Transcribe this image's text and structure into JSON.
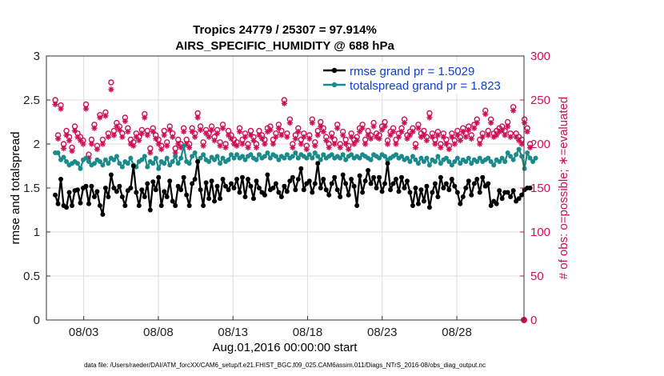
{
  "chart_data": {
    "type": "line",
    "title_line1": "Tropics 24779 / 25307 = 97.914%",
    "title_line2": "AIRS_SPECIFIC_HUMIDITY @ 688 hPa",
    "xlabel": "Aug.01,2016 00:00:00 start",
    "ylabel_left": "rmse and totalspread",
    "ylabel_right": "# of obs: o=possible; ∗=evaluated",
    "ylim_left": [
      0,
      3
    ],
    "ylim_right": [
      0,
      300
    ],
    "yticks_left": [
      "0",
      "0.5",
      "1",
      "1.5",
      "2",
      "2.5",
      "3"
    ],
    "yticks_right": [
      "0",
      "50",
      "100",
      "150",
      "200",
      "250",
      "300"
    ],
    "xlim": [
      0.5,
      32.5
    ],
    "xticks": [
      {
        "day": 3,
        "label": "08/03"
      },
      {
        "day": 8,
        "label": "08/08"
      },
      {
        "day": 13,
        "label": "08/13"
      },
      {
        "day": 18,
        "label": "08/18"
      },
      {
        "day": 23,
        "label": "08/23"
      },
      {
        "day": 28,
        "label": "08/28"
      }
    ],
    "footer": "data file: /Users/raeder/DAI/ATM_forcXX/CAM6_setup/f.e21.FHIST_BGC.f09_025.CAM6assim.011/Diags_NTrS_2016-08/obs_diag_output.nc",
    "colors": {
      "rmse": "#000000",
      "spread": "#1a8a8a",
      "obs": "#cc1155",
      "legend_text": "#0b3fd6"
    },
    "series": [
      {
        "name": "rmse grand pr = 1.5029",
        "key": "rmse",
        "values": [
          1.42,
          1.32,
          1.6,
          1.3,
          1.28,
          1.45,
          1.3,
          1.47,
          1.48,
          1.33,
          1.5,
          1.52,
          1.32,
          1.52,
          1.4,
          1.46,
          1.3,
          1.2,
          1.5,
          1.4,
          1.65,
          1.5,
          1.46,
          1.52,
          1.4,
          1.3,
          1.47,
          1.5,
          1.75,
          1.45,
          1.3,
          1.48,
          1.4,
          1.55,
          1.25,
          1.57,
          1.48,
          1.62,
          1.3,
          1.46,
          1.4,
          1.58,
          1.35,
          1.3,
          1.52,
          1.48,
          1.62,
          1.42,
          1.3,
          1.55,
          1.6,
          1.8,
          1.48,
          1.3,
          1.56,
          1.38,
          1.58,
          1.35,
          1.52,
          1.38,
          1.6,
          1.52,
          1.48,
          1.55,
          1.5,
          1.6,
          1.45,
          1.62,
          1.4,
          1.6,
          1.52,
          1.38,
          1.58,
          1.5,
          1.45,
          1.42,
          1.65,
          1.48,
          1.5,
          1.55,
          1.45,
          1.4,
          1.52,
          1.46,
          1.58,
          1.62,
          1.48,
          1.6,
          1.72,
          1.48,
          1.55,
          1.58,
          1.45,
          1.55,
          1.78,
          1.5,
          1.6,
          1.48,
          1.42,
          1.55,
          1.62,
          1.48,
          1.4,
          1.65,
          1.55,
          1.42,
          1.6,
          1.52,
          1.3,
          1.64,
          1.45,
          1.58,
          1.7,
          1.55,
          1.62,
          1.5,
          1.62,
          1.46,
          1.55,
          1.78,
          1.48,
          1.55,
          1.6,
          1.46,
          1.62,
          1.5,
          1.58,
          1.45,
          1.3,
          1.5,
          1.32,
          1.48,
          1.35,
          1.52,
          1.28,
          1.45,
          1.55,
          1.4,
          1.62,
          1.5,
          1.55,
          1.48,
          1.6,
          1.52,
          1.45,
          1.32,
          1.4,
          1.5,
          1.58,
          1.42,
          1.55,
          1.6,
          1.45,
          1.62,
          1.52,
          1.55,
          1.3,
          1.35,
          1.32,
          1.47,
          1.38,
          1.45,
          1.45,
          1.4,
          1.47,
          1.35,
          1.38,
          1.42,
          1.48,
          1.5,
          1.5
        ]
      },
      {
        "name": "totalspread grand pr = 1.823",
        "key": "spread",
        "values": [
          1.9,
          1.9,
          1.82,
          1.85,
          1.8,
          1.76,
          1.78,
          1.8,
          1.78,
          1.72,
          1.82,
          1.84,
          1.8,
          1.76,
          1.78,
          1.82,
          1.8,
          1.76,
          1.82,
          1.78,
          1.84,
          1.82,
          1.86,
          1.78,
          1.74,
          1.8,
          1.78,
          1.84,
          1.76,
          1.74,
          1.8,
          1.82,
          1.86,
          1.74,
          1.8,
          1.78,
          1.84,
          1.72,
          1.8,
          1.78,
          1.84,
          1.76,
          1.8,
          1.86,
          1.78,
          1.84,
          1.98,
          1.8,
          1.78,
          1.86,
          1.9,
          1.8,
          1.84,
          1.88,
          1.82,
          1.8,
          1.85,
          1.82,
          1.86,
          1.78,
          1.84,
          1.8,
          1.82,
          1.88,
          1.84,
          1.88,
          1.84,
          1.86,
          1.82,
          1.86,
          1.88,
          1.84,
          1.82,
          1.88,
          1.84,
          1.86,
          1.9,
          1.84,
          1.88,
          1.86,
          1.82,
          1.86,
          1.84,
          1.88,
          1.84,
          1.86,
          1.9,
          1.84,
          1.88,
          1.86,
          1.84,
          1.88,
          1.84,
          1.9,
          1.86,
          1.82,
          1.88,
          1.84,
          1.86,
          1.88,
          1.84,
          1.86,
          1.84,
          1.88,
          1.82,
          1.86,
          1.88,
          1.84,
          1.86,
          1.84,
          1.88,
          1.86,
          1.84,
          1.82,
          1.88,
          1.86,
          1.84,
          1.88,
          1.86,
          1.82,
          1.84,
          1.86,
          1.88,
          1.84,
          1.86,
          1.82,
          1.84,
          1.8,
          1.86,
          1.82,
          1.78,
          1.84,
          1.8,
          1.84,
          1.76,
          1.82,
          1.8,
          1.86,
          1.78,
          1.82,
          1.84,
          1.8,
          1.76,
          1.8,
          1.84,
          1.78,
          1.82,
          1.8,
          1.84,
          1.78,
          1.82,
          1.8,
          1.84,
          1.8,
          1.82,
          1.84,
          1.8,
          1.76,
          1.82,
          1.8,
          1.84,
          1.8,
          1.9,
          1.86,
          1.82,
          1.88,
          1.94,
          1.86,
          1.72,
          1.9,
          1.84,
          1.8,
          1.84
        ]
      },
      {
        "name": "possible",
        "key": "possible",
        "values": [
          250,
          210,
          244,
          200,
          215,
          208,
          196,
          220,
          212,
          208,
          204,
          245,
          188,
          205,
          222,
          198,
          233,
          205,
          236,
          212,
          270,
          215,
          224,
          220,
          212,
          230,
          218,
          205,
          202,
          212,
          208,
          216,
          234,
          215,
          195,
          218,
          210,
          205,
          198,
          215,
          202,
          220,
          212,
          195,
          205,
          200,
          218,
          205,
          200,
          218,
          212,
          235,
          220,
          202,
          216,
          212,
          220,
          208,
          216,
          202,
          222,
          200,
          215,
          210,
          205,
          202,
          218,
          205,
          212,
          200,
          215,
          208,
          200,
          215,
          210,
          205,
          218,
          220,
          205,
          212,
          222,
          215,
          250,
          212,
          228,
          200,
          210,
          218,
          205,
          212,
          198,
          210,
          228,
          202,
          215,
          225,
          218,
          208,
          200,
          212,
          205,
          222,
          200,
          214,
          205,
          198,
          212,
          205,
          208,
          218,
          222,
          205,
          215,
          210,
          224,
          212,
          210,
          220,
          225,
          204,
          214,
          218,
          205,
          212,
          218,
          228,
          210,
          214,
          218,
          200,
          222,
          212,
          215,
          208,
          235,
          212,
          205,
          214,
          200,
          212,
          205,
          198,
          212,
          204,
          215,
          208,
          218,
          212,
          220,
          210,
          222,
          228,
          205,
          212,
          238,
          215,
          228,
          212,
          215,
          218,
          220,
          215,
          225,
          212,
          242,
          212,
          208,
          205,
          228,
          218,
          200
        ]
      },
      {
        "name": "evaluated",
        "key": "evaluated",
        "values": [
          245,
          206,
          240,
          195,
          210,
          204,
          192,
          215,
          208,
          204,
          200,
          240,
          184,
          200,
          218,
          194,
          230,
          200,
          232,
          208,
          262,
          210,
          220,
          216,
          208,
          226,
          214,
          200,
          198,
          208,
          204,
          212,
          230,
          210,
          190,
          214,
          206,
          200,
          194,
          210,
          198,
          216,
          208,
          190,
          200,
          196,
          214,
          200,
          196,
          214,
          208,
          230,
          216,
          198,
          212,
          208,
          216,
          204,
          212,
          198,
          218,
          196,
          210,
          206,
          200,
          198,
          214,
          200,
          208,
          196,
          210,
          204,
          196,
          210,
          206,
          200,
          214,
          216,
          200,
          208,
          218,
          210,
          246,
          208,
          224,
          196,
          206,
          214,
          200,
          208,
          194,
          206,
          224,
          198,
          210,
          220,
          214,
          204,
          196,
          208,
          200,
          218,
          196,
          210,
          200,
          194,
          208,
          200,
          204,
          214,
          218,
          200,
          210,
          206,
          220,
          208,
          206,
          216,
          220,
          200,
          210,
          214,
          200,
          208,
          214,
          224,
          206,
          210,
          214,
          196,
          218,
          208,
          210,
          204,
          230,
          208,
          200,
          210,
          196,
          208,
          200,
          194,
          208,
          200,
          210,
          204,
          214,
          208,
          216,
          206,
          218,
          224,
          200,
          208,
          234,
          210,
          224,
          208,
          210,
          214,
          216,
          210,
          220,
          208,
          238,
          208,
          204,
          200,
          224,
          214,
          196
        ]
      }
    ]
  }
}
